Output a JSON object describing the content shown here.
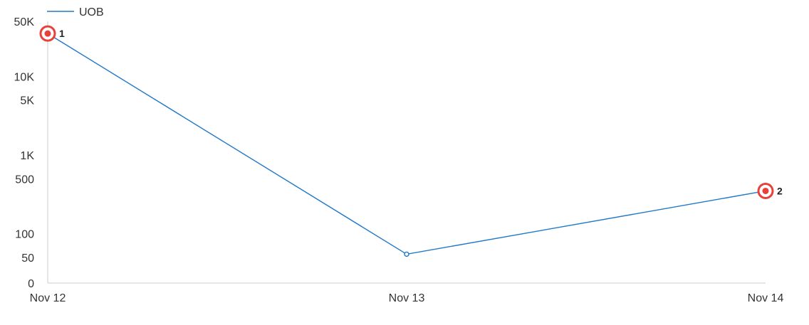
{
  "chart_data": {
    "type": "line",
    "title": "",
    "xlabel": "",
    "ylabel": "",
    "categories": [
      "Nov 12",
      "Nov 13",
      "Nov 14"
    ],
    "series": [
      {
        "name": "UOB",
        "values": [
          35000,
          55,
          350
        ],
        "color": "#1f78c8"
      }
    ],
    "y_scale": "log-like with 0 baseline",
    "y_ticks": [
      {
        "value": 0,
        "label": "0"
      },
      {
        "value": 50,
        "label": "50"
      },
      {
        "value": 100,
        "label": "100"
      },
      {
        "value": 500,
        "label": "500"
      },
      {
        "value": 1000,
        "label": "1K"
      },
      {
        "value": 5000,
        "label": "5K"
      },
      {
        "value": 10000,
        "label": "10K"
      },
      {
        "value": 50000,
        "label": "50K"
      }
    ],
    "annotations": [
      {
        "category": "Nov 12",
        "value": 35000,
        "label": "1",
        "marker_color": "#e8413a"
      },
      {
        "category": "Nov 14",
        "value": 350,
        "label": "2",
        "marker_color": "#e8413a"
      }
    ],
    "legend_position": "top-left",
    "grid": false
  }
}
